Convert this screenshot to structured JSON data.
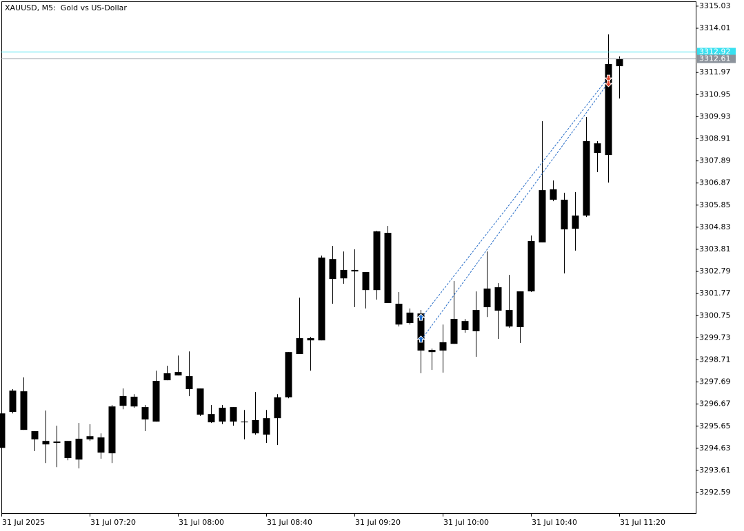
{
  "chart_data": {
    "type": "candlestick",
    "title": "XAUUSD, M5:  Gold vs US-Dollar",
    "categories": [
      "31 Jul 2025",
      null,
      null,
      null,
      null,
      null,
      null,
      null,
      "31 Jul 07:20",
      null,
      null,
      null,
      null,
      null,
      null,
      null,
      "31 Jul 08:00",
      null,
      null,
      null,
      null,
      null,
      null,
      null,
      "31 Jul 08:40",
      null,
      null,
      null,
      null,
      null,
      null,
      null,
      "31 Jul 09:20",
      null,
      null,
      null,
      null,
      null,
      null,
      null,
      "31 Jul 10:00",
      null,
      null,
      null,
      null,
      null,
      null,
      null,
      "31 Jul 10:40",
      null,
      null,
      null,
      null,
      null,
      null,
      null,
      "31 Jul 11:20"
    ],
    "open": [
      3294.65,
      3296.31,
      3297.26,
      3295.42,
      3294.97,
      3294.94,
      3294.97,
      3294.11,
      3295.04,
      3295.13,
      3294.4,
      3296.59,
      3297.01,
      3296.53,
      3295.86,
      3297.77,
      3297.99,
      3297.96,
      3297.39,
      3296.21,
      3295.86,
      3296.53,
      3295.86,
      3295.93,
      3295.26,
      3296.02,
      3296.98,
      3298.98,
      3299.61,
      3299.61,
      3303.36,
      3302.47,
      3302.79,
      3302.76,
      3301.93,
      3304.57,
      3301.3,
      3300.41,
      3300.85,
      3299.17,
      3299.14,
      3299.45,
      3300.5,
      3300.03,
      3301.14,
      3302.06,
      3301.01,
      3300.22,
      3301.87,
      3304.13,
      3306.58,
      3306.1,
      3304.76,
      3305.37,
      3308.7,
      3308.16,
      3312.26
    ],
    "high": [
      3296.31,
      3297.36,
      3297.9,
      3295.42,
      3296.37,
      3295.67,
      3294.97,
      3295.8,
      3295.74,
      3295.32,
      3296.63,
      3297.39,
      3297.13,
      3296.63,
      3298.21,
      3298.44,
      3298.91,
      3299.1,
      3297.39,
      3296.63,
      3296.63,
      3296.53,
      3296.4,
      3297.23,
      3296.4,
      3297.13,
      3299.07,
      3301.58,
      3299.77,
      3303.52,
      3303.97,
      3303.71,
      3303.81,
      3302.76,
      3304.67,
      3304.89,
      3301.84,
      3301.08,
      3301.01,
      3299.23,
      3300.34,
      3302.35,
      3300.6,
      3301.87,
      3303.71,
      3302.25,
      3302.63,
      3301.87,
      3304.45,
      3309.72,
      3306.99,
      3306.42,
      3306.45,
      3309.91,
      3308.8,
      3313.73,
      3312.71
    ],
    "low": [
      3294.65,
      3296.24,
      3295.48,
      3294.5,
      3293.95,
      3293.76,
      3294.08,
      3293.7,
      3294.97,
      3294.15,
      3293.95,
      3296.43,
      3296.5,
      3295.42,
      3295.86,
      3297.77,
      3297.99,
      3297.04,
      3296.12,
      3295.8,
      3295.74,
      3295.67,
      3295.04,
      3295.26,
      3294.88,
      3294.78,
      3296.94,
      3298.98,
      3298.21,
      3299.61,
      3301.3,
      3302.22,
      3301.14,
      3301.08,
      3301.49,
      3301.33,
      3300.25,
      3300.34,
      3298.09,
      3298.25,
      3298.12,
      3299.45,
      3299.96,
      3298.85,
      3300.69,
      3299.68,
      3300.19,
      3299.49,
      3301.84,
      3304.13,
      3306.03,
      3302.7,
      3303.75,
      3305.3,
      3307.37,
      3306.89,
      3310.77
    ],
    "close": [
      3296.24,
      3297.29,
      3295.48,
      3295.04,
      3294.81,
      3294.88,
      3294.18,
      3295.07,
      3295.19,
      3294.43,
      3296.56,
      3297.04,
      3296.56,
      3295.96,
      3297.74,
      3298.09,
      3298.15,
      3297.36,
      3296.18,
      3295.83,
      3296.5,
      3295.86,
      3295.83,
      3295.32,
      3296.02,
      3296.98,
      3299.07,
      3299.71,
      3299.71,
      3303.43,
      3302.44,
      3302.86,
      3302.86,
      3301.93,
      3304.64,
      3301.33,
      3300.34,
      3300.89,
      3299.14,
      3299.07,
      3299.52,
      3300.6,
      3300.09,
      3301.01,
      3302.0,
      3300.98,
      3300.25,
      3301.87,
      3304.19,
      3306.54,
      3306.1,
      3304.73,
      3305.37,
      3308.8,
      3308.26,
      3312.36,
      3312.61
    ],
    "color": "#000000",
    "ylim": [
      3291.64,
      3315.25
    ],
    "yticks": [
      3315.03,
      3314.01,
      3311.97,
      3310.95,
      3309.93,
      3308.91,
      3307.89,
      3306.87,
      3305.85,
      3304.83,
      3303.81,
      3302.79,
      3301.77,
      3300.75,
      3299.73,
      3298.71,
      3297.69,
      3296.67,
      3295.65,
      3294.63,
      3293.61,
      3292.59
    ],
    "price_lines": [
      {
        "value": 3312.92,
        "color": "#38e0f0"
      },
      {
        "value": 3312.61,
        "color": "#8c939c"
      }
    ],
    "trades": [
      {
        "entry_bar": 38,
        "entry": 3300.66,
        "exit_bar": 55,
        "exit": 3311.72
      },
      {
        "entry_bar": 38,
        "entry": 3299.65,
        "exit_bar": 55,
        "exit": 3311.47
      }
    ],
    "buy_color": "#1f6fd1",
    "sell_color": "#e2452c",
    "trade_line_color": "#2a6fc9"
  }
}
